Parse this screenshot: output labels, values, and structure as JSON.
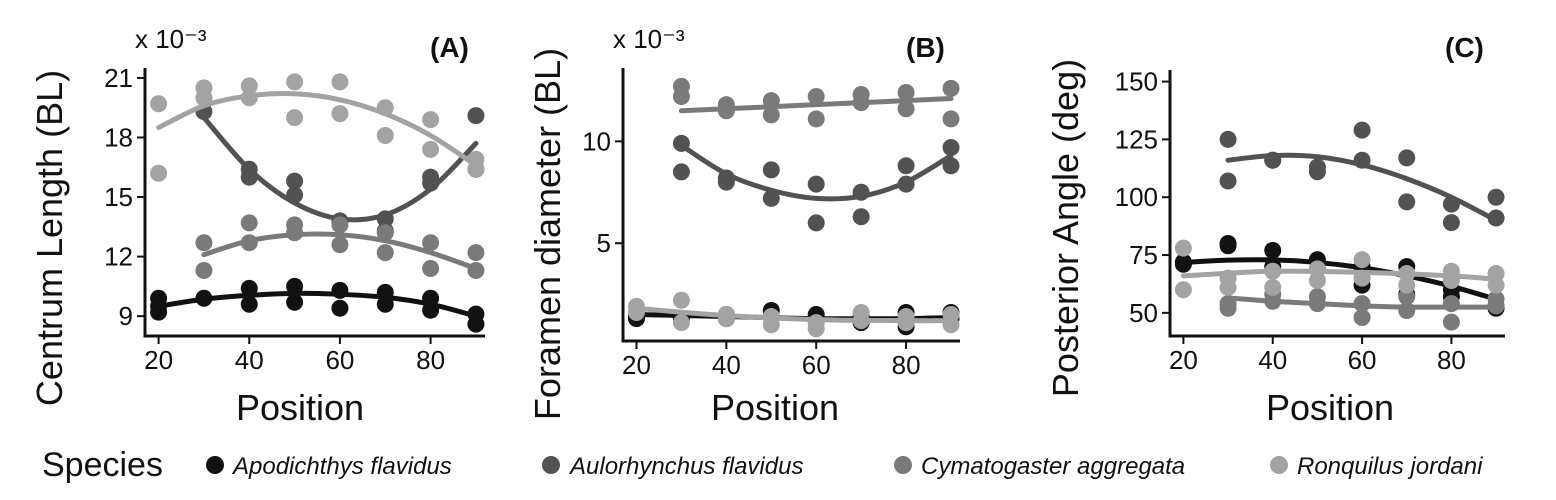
{
  "colors": {
    "Apodichthys flavidus": "#111111",
    "Aulorhynchus flavidus": "#525252",
    "Cymatogaster aggregata": "#7a7a7a",
    "Ronquilus jordani": "#a3a3a3"
  },
  "legend": {
    "title": "Species",
    "items": [
      "Apodichthys flavidus",
      "Aulorhynchus flavidus",
      "Cymatogaster aggregata",
      "Ronquilus jordani"
    ]
  },
  "chart_data": [
    {
      "type": "scatter",
      "panel": "(A)",
      "scale_note": "x 10⁻³",
      "xlabel": "Position",
      "ylabel": "Centrum Length (BL)",
      "xlim": [
        17,
        92
      ],
      "ylim": [
        8,
        21.5
      ],
      "xticks": [
        20,
        40,
        60,
        80
      ],
      "yticks": [
        9,
        12,
        15,
        18,
        21
      ],
      "series": [
        {
          "name": "Apodichthys flavidus",
          "points": [
            [
              20,
              9.9
            ],
            [
              20,
              9.5
            ],
            [
              20,
              9.2
            ],
            [
              30,
              9.9
            ],
            [
              40,
              10.4
            ],
            [
              40,
              9.6
            ],
            [
              50,
              10.5
            ],
            [
              50,
              9.7
            ],
            [
              60,
              10.3
            ],
            [
              60,
              9.4
            ],
            [
              70,
              10.2
            ],
            [
              70,
              9.6
            ],
            [
              80,
              9.9
            ],
            [
              80,
              9.3
            ],
            [
              90,
              9.1
            ],
            [
              90,
              8.6
            ]
          ],
          "fit": [
            [
              20,
              9.5
            ],
            [
              30,
              9.85
            ],
            [
              40,
              10.05
            ],
            [
              50,
              10.15
            ],
            [
              60,
              10.1
            ],
            [
              70,
              9.95
            ],
            [
              80,
              9.6
            ],
            [
              90,
              9.0
            ]
          ]
        },
        {
          "name": "Aulorhynchus flavidus",
          "points": [
            [
              30,
              19.3
            ],
            [
              40,
              16.4
            ],
            [
              40,
              16.0
            ],
            [
              50,
              15.8
            ],
            [
              50,
              15.1
            ],
            [
              60,
              13.8
            ],
            [
              70,
              13.9
            ],
            [
              70,
              13.3
            ],
            [
              80,
              16.0
            ],
            [
              80,
              15.7
            ],
            [
              90,
              19.1
            ],
            [
              90,
              16.4
            ]
          ],
          "fit": [
            [
              30,
              19.0
            ],
            [
              40,
              16.4
            ],
            [
              50,
              14.7
            ],
            [
              60,
              13.9
            ],
            [
              70,
              14.1
            ],
            [
              80,
              15.4
            ],
            [
              90,
              17.7
            ]
          ]
        },
        {
          "name": "Cymatogaster aggregata",
          "points": [
            [
              30,
              12.7
            ],
            [
              30,
              11.3
            ],
            [
              40,
              13.7
            ],
            [
              40,
              12.7
            ],
            [
              50,
              13.6
            ],
            [
              50,
              13.2
            ],
            [
              60,
              13.6
            ],
            [
              60,
              12.6
            ],
            [
              70,
              13.2
            ],
            [
              70,
              12.2
            ],
            [
              80,
              12.7
            ],
            [
              80,
              11.4
            ],
            [
              90,
              12.2
            ],
            [
              90,
              11.3
            ]
          ],
          "fit": [
            [
              30,
              12.1
            ],
            [
              40,
              12.8
            ],
            [
              50,
              13.1
            ],
            [
              60,
              13.1
            ],
            [
              70,
              12.8
            ],
            [
              80,
              12.2
            ],
            [
              90,
              11.4
            ]
          ]
        },
        {
          "name": "Ronquilus jordani",
          "points": [
            [
              20,
              19.7
            ],
            [
              20,
              16.2
            ],
            [
              30,
              20.5
            ],
            [
              30,
              20.0
            ],
            [
              40,
              20.6
            ],
            [
              40,
              20.0
            ],
            [
              50,
              20.8
            ],
            [
              50,
              19.0
            ],
            [
              60,
              20.8
            ],
            [
              60,
              19.2
            ],
            [
              70,
              19.5
            ],
            [
              70,
              18.1
            ],
            [
              80,
              18.9
            ],
            [
              80,
              17.4
            ],
            [
              90,
              16.9
            ],
            [
              90,
              16.4
            ]
          ],
          "fit": [
            [
              20,
              18.5
            ],
            [
              30,
              19.6
            ],
            [
              40,
              20.1
            ],
            [
              50,
              20.2
            ],
            [
              60,
              19.9
            ],
            [
              70,
              19.2
            ],
            [
              80,
              18.1
            ],
            [
              90,
              16.6
            ]
          ]
        }
      ]
    },
    {
      "type": "scatter",
      "panel": "(B)",
      "scale_note": "x 10⁻³",
      "xlabel": "Position",
      "ylabel": "Foramen diameter (BL)",
      "xlim": [
        17,
        92
      ],
      "ylim": [
        0.2,
        13.6
      ],
      "xticks": [
        20,
        40,
        60,
        80
      ],
      "yticks": [
        5,
        10
      ],
      "series": [
        {
          "name": "Apodichthys flavidus",
          "points": [
            [
              20,
              1.4
            ],
            [
              20,
              1.3
            ],
            [
              30,
              1.3
            ],
            [
              40,
              1.5
            ],
            [
              40,
              1.3
            ],
            [
              50,
              1.7
            ],
            [
              50,
              1.4
            ],
            [
              60,
              1.5
            ],
            [
              60,
              1.2
            ],
            [
              70,
              1.4
            ],
            [
              70,
              1.1
            ],
            [
              80,
              1.6
            ],
            [
              80,
              0.9
            ],
            [
              90,
              1.6
            ],
            [
              90,
              1.3
            ]
          ],
          "fit": [
            [
              20,
              1.5
            ],
            [
              40,
              1.4
            ],
            [
              60,
              1.3
            ],
            [
              80,
              1.3
            ],
            [
              90,
              1.35
            ]
          ]
        },
        {
          "name": "Aulorhynchus flavidus",
          "points": [
            [
              30,
              9.9
            ],
            [
              30,
              8.5
            ],
            [
              40,
              8.2
            ],
            [
              40,
              8.0
            ],
            [
              50,
              8.6
            ],
            [
              50,
              7.2
            ],
            [
              60,
              7.9
            ],
            [
              60,
              6.0
            ],
            [
              70,
              7.5
            ],
            [
              70,
              6.3
            ],
            [
              80,
              8.8
            ],
            [
              80,
              7.9
            ],
            [
              90,
              9.7
            ],
            [
              90,
              8.8
            ]
          ],
          "fit": [
            [
              30,
              9.8
            ],
            [
              40,
              8.4
            ],
            [
              50,
              7.6
            ],
            [
              60,
              7.2
            ],
            [
              70,
              7.3
            ],
            [
              80,
              8.0
            ],
            [
              90,
              9.3
            ]
          ]
        },
        {
          "name": "Cymatogaster aggregata",
          "points": [
            [
              30,
              12.7
            ],
            [
              30,
              12.2
            ],
            [
              40,
              11.8
            ],
            [
              40,
              11.5
            ],
            [
              50,
              12.0
            ],
            [
              50,
              11.3
            ],
            [
              60,
              12.2
            ],
            [
              60,
              11.1
            ],
            [
              70,
              12.3
            ],
            [
              70,
              11.9
            ],
            [
              80,
              12.4
            ],
            [
              80,
              11.6
            ],
            [
              90,
              12.6
            ],
            [
              90,
              11.1
            ]
          ],
          "fit": [
            [
              30,
              11.5
            ],
            [
              90,
              12.1
            ]
          ]
        },
        {
          "name": "Ronquilus jordani",
          "points": [
            [
              20,
              1.9
            ],
            [
              20,
              1.6
            ],
            [
              30,
              2.2
            ],
            [
              30,
              1.1
            ],
            [
              40,
              1.5
            ],
            [
              40,
              1.3
            ],
            [
              50,
              1.4
            ],
            [
              50,
              1.0
            ],
            [
              60,
              1.1
            ],
            [
              60,
              0.8
            ],
            [
              70,
              1.6
            ],
            [
              70,
              1.2
            ],
            [
              80,
              1.4
            ],
            [
              80,
              1.1
            ],
            [
              90,
              1.5
            ],
            [
              90,
              1.0
            ]
          ],
          "fit": [
            [
              20,
              1.8
            ],
            [
              40,
              1.45
            ],
            [
              60,
              1.25
            ],
            [
              80,
              1.2
            ],
            [
              90,
              1.2
            ]
          ]
        }
      ]
    },
    {
      "type": "scatter",
      "panel": "(C)",
      "scale_note": "",
      "xlabel": "Position",
      "ylabel": "Posterior Angle (deg)",
      "xlim": [
        17,
        92
      ],
      "ylim": [
        40,
        155
      ],
      "xticks": [
        20,
        40,
        60,
        80
      ],
      "yticks": [
        50,
        75,
        100,
        125,
        150
      ],
      "series": [
        {
          "name": "Apodichthys flavidus",
          "points": [
            [
              20,
              72
            ],
            [
              20,
              71
            ],
            [
              30,
              80
            ],
            [
              30,
              79
            ],
            [
              40,
              77
            ],
            [
              40,
              70
            ],
            [
              50,
              73
            ],
            [
              50,
              69
            ],
            [
              60,
              62
            ],
            [
              60,
              70
            ],
            [
              70,
              70
            ],
            [
              70,
              58
            ],
            [
              80,
              60
            ],
            [
              80,
              57
            ],
            [
              90,
              53
            ],
            [
              90,
              52
            ]
          ],
          "fit": [
            [
              20,
              71.8
            ],
            [
              30,
              72.8
            ],
            [
              40,
              72.9
            ],
            [
              50,
              71.8
            ],
            [
              60,
              69.5
            ],
            [
              70,
              66.0
            ],
            [
              80,
              61.5
            ],
            [
              90,
              55.9
            ]
          ]
        },
        {
          "name": "Aulorhynchus flavidus",
          "points": [
            [
              30,
              125
            ],
            [
              30,
              107
            ],
            [
              40,
              116
            ],
            [
              40,
              116
            ],
            [
              50,
              113
            ],
            [
              50,
              111
            ],
            [
              60,
              129
            ],
            [
              60,
              116
            ],
            [
              70,
              117
            ],
            [
              70,
              98
            ],
            [
              80,
              97
            ],
            [
              80,
              89
            ],
            [
              90,
              100
            ],
            [
              90,
              91
            ]
          ],
          "fit": [
            [
              30,
              116
            ],
            [
              40,
              118
            ],
            [
              50,
              117.5
            ],
            [
              60,
              114
            ],
            [
              70,
              108
            ],
            [
              80,
              100
            ],
            [
              90,
              90
            ]
          ]
        },
        {
          "name": "Cymatogaster aggregata",
          "points": [
            [
              30,
              54
            ],
            [
              30,
              52
            ],
            [
              40,
              58
            ],
            [
              40,
              55
            ],
            [
              50,
              57
            ],
            [
              50,
              54
            ],
            [
              60,
              54
            ],
            [
              60,
              48
            ],
            [
              70,
              57
            ],
            [
              70,
              51
            ],
            [
              80,
              54
            ],
            [
              80,
              46
            ],
            [
              90,
              56
            ],
            [
              90,
              53
            ]
          ],
          "fit": [
            [
              30,
              56.5
            ],
            [
              40,
              55
            ],
            [
              50,
              54
            ],
            [
              60,
              53
            ],
            [
              70,
              52.5
            ],
            [
              80,
              52.5
            ],
            [
              90,
              52.5
            ]
          ]
        },
        {
          "name": "Ronquilus jordani",
          "points": [
            [
              20,
              78
            ],
            [
              20,
              60
            ],
            [
              30,
              65
            ],
            [
              30,
              61
            ],
            [
              40,
              68
            ],
            [
              40,
              61
            ],
            [
              50,
              69
            ],
            [
              50,
              64
            ],
            [
              60,
              73
            ],
            [
              60,
              65
            ],
            [
              70,
              67
            ],
            [
              70,
              62
            ],
            [
              80,
              68
            ],
            [
              80,
              64
            ],
            [
              90,
              67
            ],
            [
              90,
              62
            ]
          ],
          "fit": [
            [
              20,
              66
            ],
            [
              40,
              68
            ],
            [
              60,
              67.5
            ],
            [
              80,
              66
            ],
            [
              90,
              64.5
            ]
          ]
        }
      ]
    }
  ]
}
